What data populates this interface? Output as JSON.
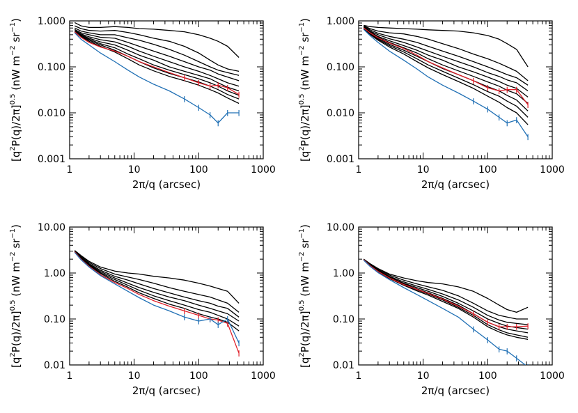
{
  "figure": {
    "xlabel": "2π/q (arcsec)",
    "ylabel_parts": {
      "open": "[q",
      "sup1": "2",
      "mid": "P(q)/2π]",
      "sup2": "0.5",
      "unit_open": " (nW m",
      "unit_sup1": "−2",
      "unit_mid": " sr",
      "unit_sup2": "−1",
      "unit_close": ")"
    }
  },
  "colors": {
    "model": "#000000",
    "red": "#e0202a",
    "blue": "#1f6fb4"
  },
  "chart_data": [
    {
      "type": "line",
      "xscale": "log",
      "yscale": "log",
      "xlim": [
        1,
        1000
      ],
      "ylim": [
        0.001,
        1.0
      ],
      "xticks": [
        "1",
        "10",
        "100",
        "1000"
      ],
      "yticks": [
        "0.001",
        "0.010",
        "0.100",
        "1.000"
      ],
      "xlabel": "2π/q (arcsec)",
      "x": [
        1.2,
        1.5,
        2,
        3,
        5,
        8,
        12,
        20,
        35,
        60,
        100,
        150,
        200,
        280,
        420
      ],
      "series": [
        {
          "color": "black",
          "values": [
            0.92,
            0.78,
            0.72,
            0.72,
            0.75,
            0.72,
            0.68,
            0.66,
            0.62,
            0.58,
            0.5,
            0.42,
            0.36,
            0.28,
            0.16
          ]
        },
        {
          "color": "black",
          "values": [
            0.78,
            0.68,
            0.62,
            0.6,
            0.62,
            0.56,
            0.5,
            0.42,
            0.36,
            0.28,
            0.2,
            0.14,
            0.11,
            0.09,
            0.08
          ]
        },
        {
          "color": "black",
          "values": [
            0.7,
            0.6,
            0.55,
            0.5,
            0.5,
            0.43,
            0.38,
            0.31,
            0.24,
            0.18,
            0.13,
            0.1,
            0.085,
            0.075,
            0.065
          ]
        },
        {
          "color": "black",
          "values": [
            0.65,
            0.55,
            0.5,
            0.44,
            0.42,
            0.34,
            0.28,
            0.22,
            0.17,
            0.13,
            0.1,
            0.085,
            0.07,
            0.06,
            0.05
          ]
        },
        {
          "color": "black",
          "values": [
            0.62,
            0.52,
            0.45,
            0.39,
            0.35,
            0.28,
            0.22,
            0.17,
            0.13,
            0.1,
            0.08,
            0.065,
            0.055,
            0.045,
            0.038
          ]
        },
        {
          "color": "black",
          "values": [
            0.6,
            0.5,
            0.42,
            0.35,
            0.3,
            0.23,
            0.18,
            0.14,
            0.1,
            0.08,
            0.065,
            0.055,
            0.045,
            0.036,
            0.03
          ]
        },
        {
          "color": "black",
          "values": [
            0.58,
            0.48,
            0.4,
            0.32,
            0.26,
            0.19,
            0.15,
            0.11,
            0.085,
            0.068,
            0.055,
            0.045,
            0.038,
            0.03,
            0.024
          ]
        },
        {
          "color": "black",
          "values": [
            0.57,
            0.46,
            0.38,
            0.3,
            0.23,
            0.17,
            0.13,
            0.095,
            0.072,
            0.058,
            0.047,
            0.038,
            0.032,
            0.025,
            0.02
          ]
        },
        {
          "color": "black",
          "values": [
            0.56,
            0.45,
            0.36,
            0.28,
            0.21,
            0.15,
            0.11,
            0.082,
            0.062,
            0.05,
            0.04,
            0.032,
            0.027,
            0.021,
            0.016
          ]
        },
        {
          "color": "red",
          "values": [
            0.58,
            0.44,
            0.34,
            0.27,
            0.22,
            0.17,
            0.13,
            0.1,
            0.075,
            0.058,
            0.045,
            0.038,
            0.04,
            0.035,
            0.025
          ]
        },
        {
          "color": "blue",
          "values": [
            0.55,
            0.4,
            0.3,
            0.2,
            0.13,
            0.085,
            0.06,
            0.042,
            0.03,
            0.02,
            0.013,
            0.009,
            0.006,
            0.01,
            0.01
          ]
        }
      ]
    },
    {
      "type": "line",
      "xscale": "log",
      "yscale": "log",
      "xlim": [
        1,
        1000
      ],
      "ylim": [
        0.001,
        1.0
      ],
      "xticks": [
        "1",
        "10",
        "100",
        "1000"
      ],
      "yticks": [
        "0.001",
        "0.010",
        "0.100",
        "1.000"
      ],
      "xlabel": "2π/q (arcsec)",
      "x": [
        1.2,
        1.5,
        2,
        3,
        5,
        8,
        12,
        20,
        35,
        60,
        100,
        150,
        200,
        280,
        420
      ],
      "series": [
        {
          "color": "black",
          "values": [
            0.8,
            0.75,
            0.72,
            0.7,
            0.68,
            0.66,
            0.64,
            0.62,
            0.6,
            0.55,
            0.48,
            0.4,
            0.32,
            0.24,
            0.1
          ]
        },
        {
          "color": "black",
          "values": [
            0.78,
            0.68,
            0.6,
            0.55,
            0.52,
            0.46,
            0.4,
            0.32,
            0.25,
            0.19,
            0.15,
            0.12,
            0.1,
            0.08,
            0.05
          ]
        },
        {
          "color": "black",
          "values": [
            0.76,
            0.64,
            0.54,
            0.46,
            0.4,
            0.34,
            0.28,
            0.22,
            0.17,
            0.13,
            0.1,
            0.08,
            0.068,
            0.058,
            0.04
          ]
        },
        {
          "color": "black",
          "values": [
            0.74,
            0.6,
            0.5,
            0.41,
            0.34,
            0.27,
            0.22,
            0.17,
            0.13,
            0.1,
            0.075,
            0.062,
            0.052,
            0.045,
            0.03
          ]
        },
        {
          "color": "black",
          "values": [
            0.72,
            0.58,
            0.46,
            0.37,
            0.29,
            0.23,
            0.18,
            0.14,
            0.1,
            0.078,
            0.06,
            0.048,
            0.04,
            0.034,
            0.022
          ]
        },
        {
          "color": "black",
          "values": [
            0.7,
            0.56,
            0.44,
            0.34,
            0.26,
            0.2,
            0.15,
            0.11,
            0.082,
            0.062,
            0.047,
            0.038,
            0.031,
            0.026,
            0.016
          ]
        },
        {
          "color": "black",
          "values": [
            0.68,
            0.54,
            0.42,
            0.31,
            0.23,
            0.17,
            0.13,
            0.092,
            0.068,
            0.05,
            0.037,
            0.03,
            0.024,
            0.019,
            0.011
          ]
        },
        {
          "color": "black",
          "values": [
            0.67,
            0.52,
            0.4,
            0.29,
            0.21,
            0.15,
            0.11,
            0.08,
            0.057,
            0.041,
            0.029,
            0.023,
            0.018,
            0.014,
            0.008
          ]
        },
        {
          "color": "black",
          "values": [
            0.66,
            0.51,
            0.38,
            0.27,
            0.19,
            0.13,
            0.095,
            0.068,
            0.048,
            0.034,
            0.023,
            0.017,
            0.013,
            0.01,
            0.0055
          ]
        },
        {
          "color": "red",
          "values": [
            0.7,
            0.55,
            0.43,
            0.33,
            0.25,
            0.18,
            0.13,
            0.095,
            0.068,
            0.05,
            0.035,
            0.03,
            0.032,
            0.032,
            0.015
          ]
        },
        {
          "color": "blue",
          "values": [
            0.65,
            0.48,
            0.34,
            0.22,
            0.14,
            0.09,
            0.06,
            0.04,
            0.027,
            0.018,
            0.012,
            0.008,
            0.006,
            0.007,
            0.003
          ]
        }
      ]
    },
    {
      "type": "line",
      "xscale": "log",
      "yscale": "log",
      "xlim": [
        1,
        1000
      ],
      "ylim": [
        0.01,
        10.0
      ],
      "xticks": [
        "1",
        "10",
        "100",
        "1000"
      ],
      "yticks": [
        "0.01",
        "0.10",
        "1.00",
        "10.00"
      ],
      "xlabel": "2π/q (arcsec)",
      "x": [
        1.2,
        1.5,
        2,
        3,
        5,
        8,
        12,
        20,
        35,
        60,
        100,
        150,
        200,
        280,
        420
      ],
      "series": [
        {
          "color": "black",
          "values": [
            3.1,
            2.4,
            1.8,
            1.35,
            1.1,
            1.0,
            0.95,
            0.85,
            0.78,
            0.7,
            0.6,
            0.52,
            0.46,
            0.4,
            0.22
          ]
        },
        {
          "color": "black",
          "values": [
            3.0,
            2.3,
            1.7,
            1.25,
            0.95,
            0.82,
            0.72,
            0.6,
            0.48,
            0.4,
            0.34,
            0.3,
            0.26,
            0.22,
            0.14
          ]
        },
        {
          "color": "black",
          "values": [
            3.0,
            2.2,
            1.6,
            1.15,
            0.85,
            0.7,
            0.58,
            0.46,
            0.37,
            0.3,
            0.25,
            0.22,
            0.19,
            0.17,
            0.11
          ]
        },
        {
          "color": "black",
          "values": [
            2.9,
            2.15,
            1.55,
            1.08,
            0.78,
            0.6,
            0.48,
            0.38,
            0.3,
            0.25,
            0.2,
            0.17,
            0.15,
            0.13,
            0.09
          ]
        },
        {
          "color": "black",
          "values": [
            2.9,
            2.1,
            1.5,
            1.02,
            0.72,
            0.54,
            0.42,
            0.32,
            0.25,
            0.2,
            0.16,
            0.14,
            0.12,
            0.1,
            0.07
          ]
        },
        {
          "color": "black",
          "values": [
            2.9,
            2.05,
            1.45,
            0.98,
            0.66,
            0.49,
            0.37,
            0.28,
            0.21,
            0.17,
            0.13,
            0.11,
            0.1,
            0.085,
            0.055
          ]
        },
        {
          "color": "red",
          "values": [
            2.9,
            2.0,
            1.4,
            0.92,
            0.62,
            0.46,
            0.34,
            0.25,
            0.19,
            0.15,
            0.12,
            0.1,
            0.095,
            0.08,
            0.018
          ]
        },
        {
          "color": "blue",
          "values": [
            2.8,
            1.95,
            1.35,
            0.88,
            0.58,
            0.4,
            0.29,
            0.2,
            0.15,
            0.11,
            0.09,
            0.1,
            0.075,
            0.1,
            0.03
          ]
        }
      ]
    },
    {
      "type": "line",
      "xscale": "log",
      "yscale": "log",
      "xlim": [
        1,
        1000
      ],
      "ylim": [
        0.01,
        10.0
      ],
      "xticks": [
        "1",
        "10",
        "100",
        "1000"
      ],
      "yticks": [
        "0.01",
        "0.10",
        "1.00",
        "10.00"
      ],
      "xlabel": "2π/q (arcsec)",
      "x": [
        1.2,
        1.5,
        2,
        3,
        5,
        8,
        12,
        20,
        35,
        60,
        100,
        150,
        200,
        280,
        420
      ],
      "series": [
        {
          "color": "black",
          "values": [
            2.0,
            1.6,
            1.25,
            0.95,
            0.78,
            0.68,
            0.62,
            0.58,
            0.5,
            0.4,
            0.28,
            0.2,
            0.16,
            0.14,
            0.18
          ]
        },
        {
          "color": "black",
          "values": [
            2.0,
            1.55,
            1.2,
            0.9,
            0.7,
            0.58,
            0.5,
            0.42,
            0.32,
            0.22,
            0.15,
            0.12,
            0.11,
            0.1,
            0.1
          ]
        },
        {
          "color": "black",
          "values": [
            2.0,
            1.5,
            1.15,
            0.85,
            0.64,
            0.52,
            0.44,
            0.35,
            0.26,
            0.18,
            0.12,
            0.095,
            0.085,
            0.08,
            0.075
          ]
        },
        {
          "color": "black",
          "values": [
            1.95,
            1.48,
            1.12,
            0.82,
            0.6,
            0.48,
            0.4,
            0.31,
            0.22,
            0.15,
            0.1,
            0.08,
            0.07,
            0.065,
            0.06
          ]
        },
        {
          "color": "black",
          "values": [
            1.95,
            1.46,
            1.1,
            0.8,
            0.58,
            0.45,
            0.37,
            0.28,
            0.2,
            0.13,
            0.085,
            0.068,
            0.06,
            0.055,
            0.05
          ]
        },
        {
          "color": "black",
          "values": [
            1.95,
            1.45,
            1.08,
            0.78,
            0.56,
            0.43,
            0.35,
            0.26,
            0.18,
            0.12,
            0.075,
            0.058,
            0.05,
            0.045,
            0.04
          ]
        },
        {
          "color": "black",
          "values": [
            1.95,
            1.44,
            1.06,
            0.76,
            0.54,
            0.41,
            0.33,
            0.24,
            0.17,
            0.11,
            0.068,
            0.052,
            0.045,
            0.04,
            0.036
          ]
        },
        {
          "color": "red",
          "values": [
            1.95,
            1.45,
            1.08,
            0.78,
            0.56,
            0.44,
            0.36,
            0.27,
            0.19,
            0.13,
            0.085,
            0.068,
            0.068,
            0.068,
            0.07
          ]
        },
        {
          "color": "blue",
          "values": [
            1.9,
            1.4,
            1.02,
            0.72,
            0.48,
            0.34,
            0.25,
            0.17,
            0.11,
            0.06,
            0.035,
            0.022,
            0.02,
            0.014,
            0.009
          ]
        }
      ]
    }
  ]
}
